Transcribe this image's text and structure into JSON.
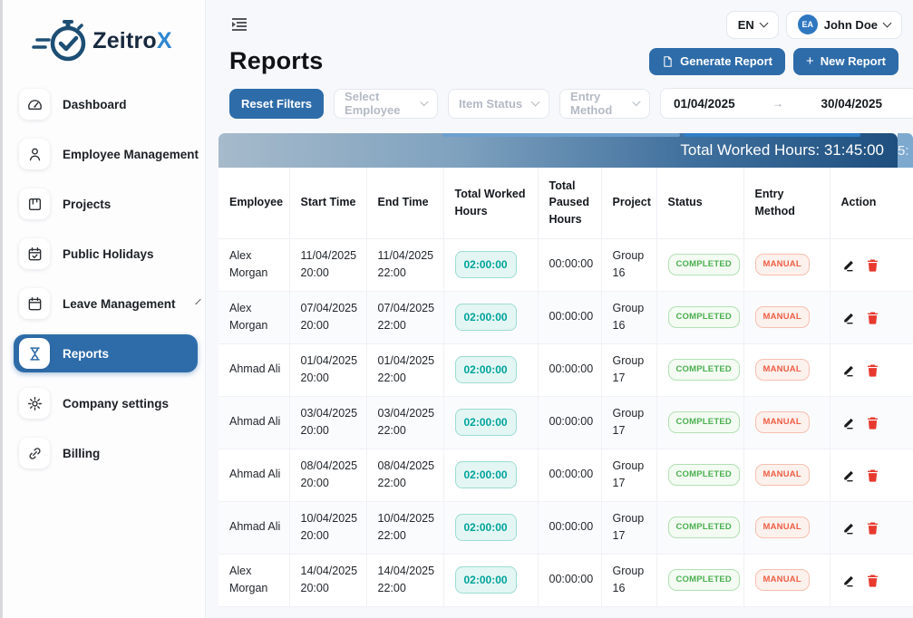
{
  "brand": {
    "name_primary": "Zeitro",
    "name_accent": "X"
  },
  "sidebar": {
    "items": [
      {
        "label": "Dashboard",
        "icon": "dashboard-icon",
        "active": false,
        "chevron": false
      },
      {
        "label": "Employee Management",
        "icon": "employee-icon",
        "active": false,
        "chevron": false
      },
      {
        "label": "Projects",
        "icon": "projects-icon",
        "active": false,
        "chevron": false
      },
      {
        "label": "Public Holidays",
        "icon": "public-holidays-icon",
        "active": false,
        "chevron": false
      },
      {
        "label": "Leave Management",
        "icon": "leave-icon",
        "active": false,
        "chevron": true
      },
      {
        "label": "Reports",
        "icon": "reports-icon",
        "active": true,
        "chevron": false
      },
      {
        "label": "Company settings",
        "icon": "settings-icon",
        "active": false,
        "chevron": false
      },
      {
        "label": "Billing",
        "icon": "billing-icon",
        "active": false,
        "chevron": false
      }
    ]
  },
  "topbar": {
    "language": "EN",
    "user_initials": "EA",
    "user_name": "John Doe"
  },
  "page": {
    "title": "Reports",
    "generate_report_label": "Generate Report",
    "new_report_label": "New Report",
    "new_report_plus": "+"
  },
  "filters": {
    "reset_label": "Reset Filters",
    "select_employee_placeholder": "Select Employee",
    "item_status_placeholder": "Item Status",
    "entry_method_placeholder": "Entry Method",
    "date_from": "01/04/2025",
    "date_to": "30/04/2025",
    "range_arrow": "→"
  },
  "summary": {
    "total_worked_label": "Total Worked Hours: 31:45:00",
    "overflow_fragment": "5:"
  },
  "table": {
    "columns": [
      "Employee",
      "Start Time",
      "End Time",
      "Total Worked Hours",
      "Total Paused Hours",
      "Project",
      "Status",
      "Entry Method",
      "Action"
    ],
    "rows": [
      {
        "employee": "Alex Morgan",
        "start": "11/04/2025 20:00",
        "end": "11/04/2025 22:00",
        "worked": "02:00:00",
        "paused": "00:00:00",
        "project": "Group 16",
        "status": "COMPLETED",
        "entry": "MANUAL"
      },
      {
        "employee": "Alex Morgan",
        "start": "07/04/2025 20:00",
        "end": "07/04/2025 22:00",
        "worked": "02:00:00",
        "paused": "00:00:00",
        "project": "Group 16",
        "status": "COMPLETED",
        "entry": "MANUAL"
      },
      {
        "employee": "Ahmad Ali",
        "start": "01/04/2025 20:00",
        "end": "01/04/2025 22:00",
        "worked": "02:00:00",
        "paused": "00:00:00",
        "project": "Group 17",
        "status": "COMPLETED",
        "entry": "MANUAL"
      },
      {
        "employee": "Ahmad Ali",
        "start": "03/04/2025 20:00",
        "end": "03/04/2025 22:00",
        "worked": "02:00:00",
        "paused": "00:00:00",
        "project": "Group 17",
        "status": "COMPLETED",
        "entry": "MANUAL"
      },
      {
        "employee": "Ahmad Ali",
        "start": "08/04/2025 20:00",
        "end": "08/04/2025 22:00",
        "worked": "02:00:00",
        "paused": "00:00:00",
        "project": "Group 17",
        "status": "COMPLETED",
        "entry": "MANUAL"
      },
      {
        "employee": "Ahmad Ali",
        "start": "10/04/2025 20:00",
        "end": "10/04/2025 22:00",
        "worked": "02:00:00",
        "paused": "00:00:00",
        "project": "Group 17",
        "status": "COMPLETED",
        "entry": "MANUAL"
      },
      {
        "employee": "Alex Morgan",
        "start": "14/04/2025 20:00",
        "end": "14/04/2025 22:00",
        "worked": "02:00:00",
        "paused": "00:00:00",
        "project": "Group 16",
        "status": "COMPLETED",
        "entry": "MANUAL"
      }
    ]
  },
  "colors": {
    "accent_blue": "#2e6ca9",
    "logo_navy": "#1d4e74",
    "logo_accent": "#2e86d1",
    "teal_badge_text": "#00a39b",
    "green_badge_text": "#4caf50",
    "red_badge_text": "#ee5f44",
    "trash_red": "#e8392e",
    "bar_gradient_dark": "#1e4f7e"
  }
}
